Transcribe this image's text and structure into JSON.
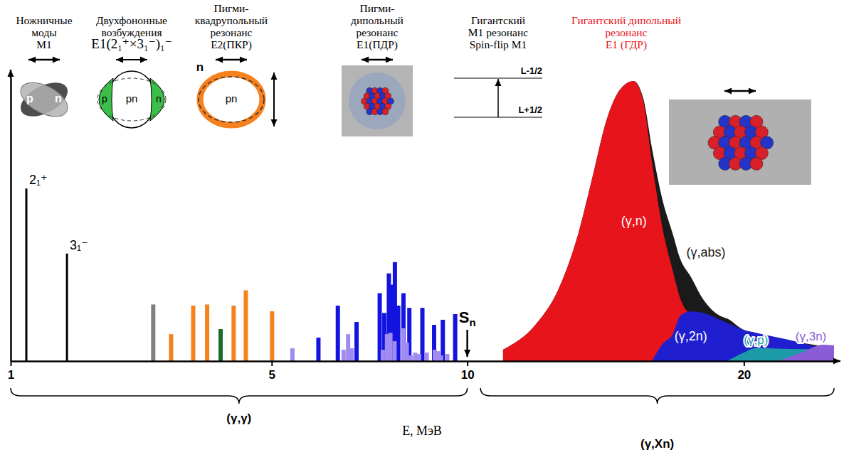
{
  "chart_data": {
    "type": "bar",
    "xlabel": "E, МэВ",
    "xlim": [
      1,
      24
    ],
    "xticks": [
      1,
      5,
      10,
      20
    ],
    "ylim": [
      0,
      100
    ],
    "yticks": [],
    "tick_labels": "x",
    "levels": {
      "labels": [
        "2₁⁺",
        "3₁⁻"
      ],
      "x": [
        1.15,
        1.6
      ],
      "values": [
        61,
        38
      ],
      "color": "#000000"
    },
    "modes": [
      {
        "title": "Ножничные моды",
        "subtitle": "M1",
        "icon_labels": [
          "p",
          "n"
        ],
        "color": "#808080",
        "x": [
          2.8
        ],
        "values": [
          20
        ]
      },
      {
        "title": "Двухфононные возбуждения",
        "subtitle": "E1(2₁⁺×3₁⁻)₁⁻",
        "icon_labels": [
          "p",
          "pn",
          "n"
        ],
        "color": "#1e6b2c",
        "x": [
          3.97
        ],
        "values": [
          11.3
        ]
      },
      {
        "title": "Пигми-квадрупольный резонанс",
        "subtitle": "E2(ПКР)",
        "icon_labels": [
          "n",
          "pn"
        ],
        "color": "#f5821f",
        "x": [
          3.09,
          3.47,
          3.72,
          4.22,
          4.46,
          5.0
        ],
        "values": [
          9.5,
          19.6,
          20,
          19.6,
          25,
          17.6
        ]
      },
      {
        "title": "Пигми-дипольный резонанс",
        "subtitle": "E1(ПДР)",
        "color": "#1414e0",
        "x": [
          6.03,
          6.49,
          6.95,
          7.54,
          7.66,
          7.78,
          7.85,
          7.94,
          8.03,
          8.17,
          8.33,
          8.69,
          9.02,
          9.27,
          9.63
        ],
        "values": [
          8.3,
          19.6,
          13.8,
          24,
          17,
          31,
          27,
          35,
          19.6,
          24,
          18.8,
          18.8,
          12.8,
          14.6,
          16.6
        ]
      },
      {
        "title": "Гигантский M1 резонанс",
        "subtitle": "Spin-flip M1",
        "icon_labels": [
          "L-1/2",
          "L+1/2"
        ],
        "color": "#a08cf0",
        "x": [
          5.44,
          6.63,
          6.74,
          6.83,
          7.62,
          7.73,
          7.82,
          7.93,
          8.16,
          8.26,
          8.37,
          8.49,
          8.6,
          8.81,
          9.04,
          9.13,
          9.22,
          9.4
        ],
        "values": [
          4.5,
          4,
          9.5,
          4.5,
          4,
          9.5,
          10,
          7,
          11.6,
          6.5,
          2,
          3,
          2.5,
          3,
          4,
          3.5,
          2,
          2.5
        ]
      },
      {
        "title": "Гигантский дипольный резонанс",
        "subtitle": "E1 (ГДР)",
        "color": "#e8141b",
        "x": [
          11.1,
          12.16,
          12.9,
          13.6,
          14.1,
          14.6,
          15.1,
          15.6,
          15.96,
          16.3,
          16.7,
          17.1,
          17.4,
          17.8,
          18.3,
          19.0,
          19.3,
          20.0,
          20.5,
          21.5,
          22.5,
          23.5,
          24
        ],
        "series": [
          {
            "name": "(γ,n)",
            "color": "#e8141b",
            "values": [
              4,
              13,
              25,
              45,
              65,
              85,
              96,
              99,
              92,
              70,
              47,
              32,
              22,
              16,
              11,
              7,
              6,
              4.5,
              4,
              3,
              2.6,
              2.2,
              2
            ]
          },
          {
            "name": "(γ,abs)",
            "color": "#1a1a1a",
            "values": [
              4,
              13,
              25,
              45,
              65,
              85,
              96,
              99,
              93,
              75,
              57,
              45,
              36,
              30,
              22,
              16,
              15,
              11,
              10,
              7.5,
              6.5,
              5.3,
              5
            ]
          },
          {
            "name": "(γ,2n)",
            "color": "#1f1fd0",
            "values": [
              null,
              null,
              null,
              null,
              null,
              null,
              null,
              null,
              null,
              0,
              6,
              9.5,
              16,
              17.5,
              17,
              14.6,
              13.5,
              11,
              10,
              8.3,
              6.5,
              4.5,
              4
            ]
          },
          {
            "name": "(γ,p)",
            "color": "#1d9aa8",
            "values": [
              null,
              null,
              null,
              null,
              null,
              null,
              null,
              null,
              null,
              null,
              null,
              null,
              null,
              null,
              null,
              null,
              0,
              3,
              4.6,
              4.4,
              4.2,
              4,
              3.8
            ]
          },
          {
            "name": "(γ,3n)",
            "color": "#8a5cd6",
            "values": [
              null,
              null,
              null,
              null,
              null,
              null,
              null,
              null,
              null,
              null,
              null,
              null,
              null,
              null,
              null,
              null,
              null,
              null,
              null,
              0,
              3,
              5.8,
              5.5
            ]
          }
        ]
      }
    ],
    "threshold": {
      "label": "S",
      "subscript": "n",
      "x": 10
    },
    "ranges": [
      {
        "label": "(γ,γ)",
        "x": [
          1,
          10
        ]
      },
      {
        "label": "(γ,Xn)",
        "x": [
          10.4,
          24
        ]
      }
    ]
  }
}
